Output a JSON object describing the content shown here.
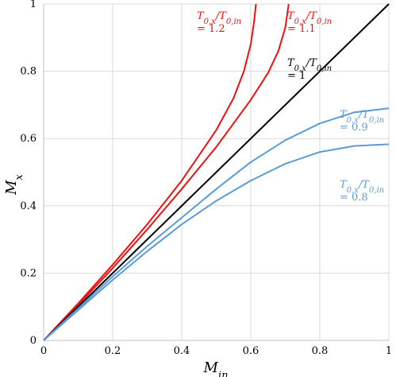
{
  "chart_data": {
    "type": "line",
    "xlabel": "M_in",
    "ylabel": "M_x",
    "xlim": [
      0,
      1
    ],
    "ylim": [
      0,
      1
    ],
    "x_ticks": [
      "0",
      "0.2",
      "0.4",
      "0.6",
      "0.8",
      "1"
    ],
    "y_ticks": [
      "0",
      "0.2",
      "0.4",
      "0.6",
      "0.8",
      "1"
    ],
    "grid": true,
    "colors": {
      "red": "#ee1111",
      "black": "#000000",
      "blue": "#5b9bd5"
    },
    "series": [
      {
        "label_line1": "T0,x/T0,in",
        "label_line2": "= 1.2",
        "color": "#ee1111",
        "points": [
          [
            0,
            0
          ],
          [
            0.1,
            0.11
          ],
          [
            0.2,
            0.225
          ],
          [
            0.3,
            0.345
          ],
          [
            0.4,
            0.475
          ],
          [
            0.5,
            0.625
          ],
          [
            0.55,
            0.72
          ],
          [
            0.58,
            0.8
          ],
          [
            0.6,
            0.88
          ],
          [
            0.61,
            0.95
          ],
          [
            0.615,
            1.0
          ]
        ]
      },
      {
        "label_line1": "T0,x/T0,in",
        "label_line2": "= 1.1",
        "color": "#ee1111",
        "points": [
          [
            0,
            0
          ],
          [
            0.1,
            0.105
          ],
          [
            0.2,
            0.215
          ],
          [
            0.3,
            0.33
          ],
          [
            0.4,
            0.45
          ],
          [
            0.5,
            0.575
          ],
          [
            0.6,
            0.715
          ],
          [
            0.65,
            0.795
          ],
          [
            0.68,
            0.86
          ],
          [
            0.7,
            0.93
          ],
          [
            0.71,
            1.0
          ]
        ]
      },
      {
        "label_line1": "T0,x/T0,in",
        "label_line2": "= 1",
        "color": "#000000",
        "points": [
          [
            0,
            0
          ],
          [
            1,
            1
          ]
        ]
      },
      {
        "label_line1": "T0,x/T0,in",
        "label_line2": "= 0.9",
        "color": "#5b9bd5",
        "points": [
          [
            0,
            0
          ],
          [
            0.1,
            0.095
          ],
          [
            0.2,
            0.19
          ],
          [
            0.3,
            0.28
          ],
          [
            0.4,
            0.365
          ],
          [
            0.5,
            0.45
          ],
          [
            0.6,
            0.53
          ],
          [
            0.7,
            0.595
          ],
          [
            0.8,
            0.645
          ],
          [
            0.9,
            0.678
          ],
          [
            1.0,
            0.69
          ]
        ]
      },
      {
        "label_line1": "T0,x/T0,in",
        "label_line2": "= 0.8",
        "color": "#5b9bd5",
        "points": [
          [
            0,
            0
          ],
          [
            0.1,
            0.09
          ],
          [
            0.2,
            0.18
          ],
          [
            0.3,
            0.265
          ],
          [
            0.4,
            0.345
          ],
          [
            0.5,
            0.415
          ],
          [
            0.6,
            0.475
          ],
          [
            0.7,
            0.525
          ],
          [
            0.8,
            0.56
          ],
          [
            0.9,
            0.578
          ],
          [
            1.0,
            0.583
          ]
        ]
      }
    ]
  }
}
